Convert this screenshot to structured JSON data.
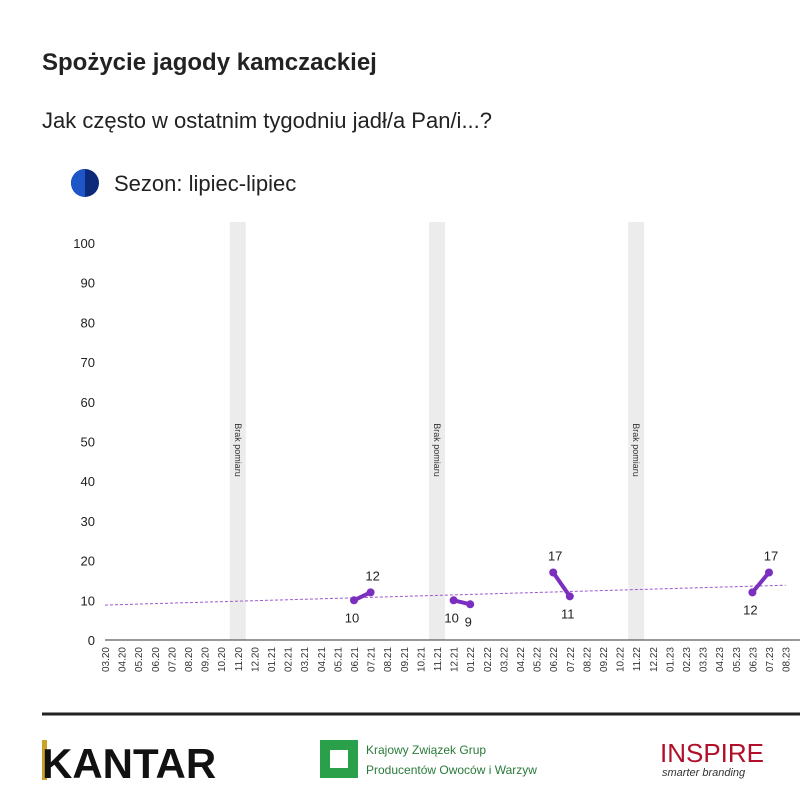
{
  "chart_data": {
    "type": "line",
    "title": "Spożycie jagody kamczackiej",
    "subtitle": "Jak często w ostatnim tygodniu jadł/a Pan/i...?",
    "categories": [
      "03.20",
      "04.20",
      "05.20",
      "06.20",
      "07.20",
      "08.20",
      "09.20",
      "10.20",
      "11.20",
      "12.20",
      "01.21",
      "02.21",
      "03.21",
      "04.21",
      "05.21",
      "06.21",
      "07.21",
      "08.21",
      "09.21",
      "10.21",
      "11.21",
      "12.21",
      "01.22",
      "02.22",
      "03.22",
      "04.22",
      "05.22",
      "06.22",
      "07.22",
      "08.22",
      "09.22",
      "10.22",
      "11.22",
      "12.22",
      "01.23",
      "02.23",
      "03.23",
      "04.23",
      "05.23",
      "06.23",
      "07.23",
      "08.23"
    ],
    "series": [
      {
        "name": "Sezon: lipiec-lipiec",
        "color": "#7b2fbf",
        "values": [
          null,
          null,
          null,
          null,
          null,
          null,
          null,
          null,
          null,
          null,
          null,
          null,
          null,
          null,
          null,
          10,
          12,
          null,
          null,
          null,
          null,
          10,
          9,
          null,
          null,
          null,
          null,
          17,
          11,
          null,
          null,
          null,
          null,
          null,
          null,
          null,
          null,
          null,
          null,
          12,
          17,
          null
        ]
      }
    ],
    "ylim": [
      0,
      100
    ],
    "yticks": [
      0,
      10,
      20,
      30,
      40,
      50,
      60,
      70,
      80,
      90,
      100
    ],
    "gaps": [
      {
        "category": "11.20",
        "label": "Brak pomiaru"
      },
      {
        "category": "11.21",
        "label": "Brak pomiaru"
      },
      {
        "category": "11.22",
        "label": "Brak pomiaru"
      }
    ],
    "trendline": {
      "x": [
        "03.20",
        "08.23"
      ],
      "values": [
        8.8,
        13.8
      ],
      "color": "#9b59d0"
    }
  },
  "footer": {
    "logos": [
      "KANTAR",
      "Krajowy Związek Grup",
      "Producentów Owoców i Warzyw",
      "INSPIRE",
      "smarter branding"
    ]
  }
}
